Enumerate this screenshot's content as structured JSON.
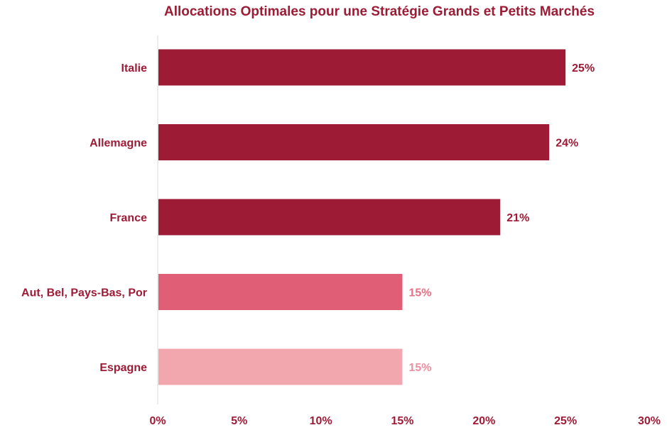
{
  "chart_data": {
    "type": "bar",
    "orientation": "horizontal",
    "title": "Allocations Optimales pour une Stratégie Grands et Petits Marchés",
    "categories": [
      "Italie",
      "Allemagne",
      "France",
      "Aut, Bel, Pays-Bas, Por",
      "Espagne"
    ],
    "values": [
      25,
      24,
      21,
      15,
      15
    ],
    "value_labels": [
      "25%",
      "24%",
      "21%",
      "15%",
      "15%"
    ],
    "bar_colors": [
      "#9e1b36",
      "#9e1b36",
      "#9e1b36",
      "#e05e76",
      "#f2a7af"
    ],
    "label_colors": [
      "#9e1b36",
      "#9e1b36",
      "#9e1b36",
      "#e96f86",
      "#ee8fa0"
    ],
    "xlim": [
      0,
      30
    ],
    "xticks": [
      0,
      5,
      10,
      15,
      20,
      25,
      30
    ],
    "xtick_labels": [
      "0%",
      "5%",
      "10%",
      "15%",
      "20%",
      "25%",
      "30%"
    ],
    "xlabel": "",
    "ylabel": "",
    "grid": false,
    "legend": "none",
    "category_label_color": "#9e1b36",
    "axis_color": "#d9d9d9"
  }
}
